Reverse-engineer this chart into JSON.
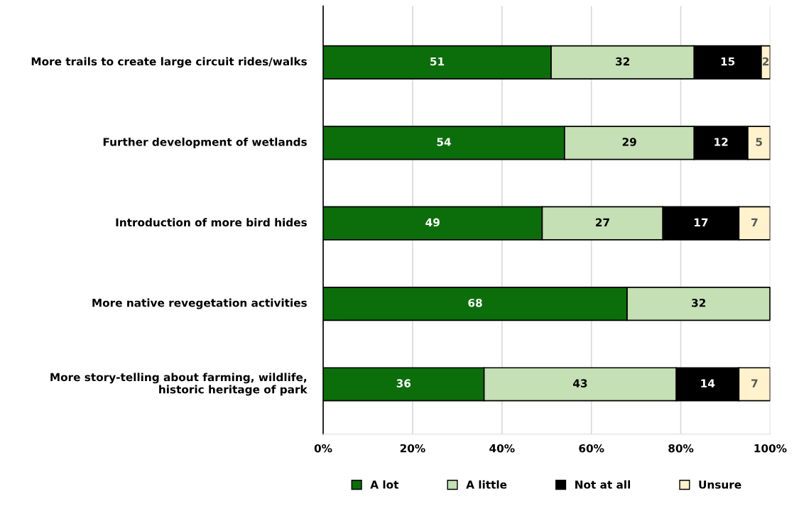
{
  "chart_data": {
    "type": "bar",
    "orientation": "horizontal",
    "stacked": true,
    "categories": [
      "More trails to create large circuit rides/walks",
      "Further development of wetlands",
      "Introduction of more bird hides",
      "More native revegetation activities",
      "More story-telling about farming, wildlife, historic heritage of park"
    ],
    "series": [
      {
        "name": "A lot",
        "color": "#0b6e0b",
        "values": [
          51,
          54,
          49,
          68,
          36
        ],
        "value_labels": [
          "51",
          "54",
          "49",
          "68",
          "36"
        ]
      },
      {
        "name": "A little",
        "color": "#c5e0b4",
        "values": [
          32,
          29,
          27,
          32,
          43
        ],
        "value_labels": [
          "32",
          "29",
          "27",
          "32",
          "43"
        ]
      },
      {
        "name": "Not at all",
        "color": "#000000",
        "values": [
          15,
          12,
          17,
          0,
          14
        ],
        "value_labels": [
          "15",
          "12",
          "17",
          null,
          "14"
        ]
      },
      {
        "name": "Unsure",
        "color": "#fff2cc",
        "values": [
          2,
          5,
          7,
          0,
          7
        ],
        "value_labels": [
          "2",
          "5",
          "7",
          null,
          "7"
        ]
      }
    ],
    "xlim": [
      0,
      100
    ],
    "xticks": [
      {
        "value": 0,
        "label": "0%"
      },
      {
        "value": 20,
        "label": "20%"
      },
      {
        "value": 40,
        "label": "40%"
      },
      {
        "value": 60,
        "label": "60%"
      },
      {
        "value": 80,
        "label": "80%"
      },
      {
        "value": 100,
        "label": "100%"
      }
    ],
    "grid": "x",
    "legend": "bottom"
  }
}
